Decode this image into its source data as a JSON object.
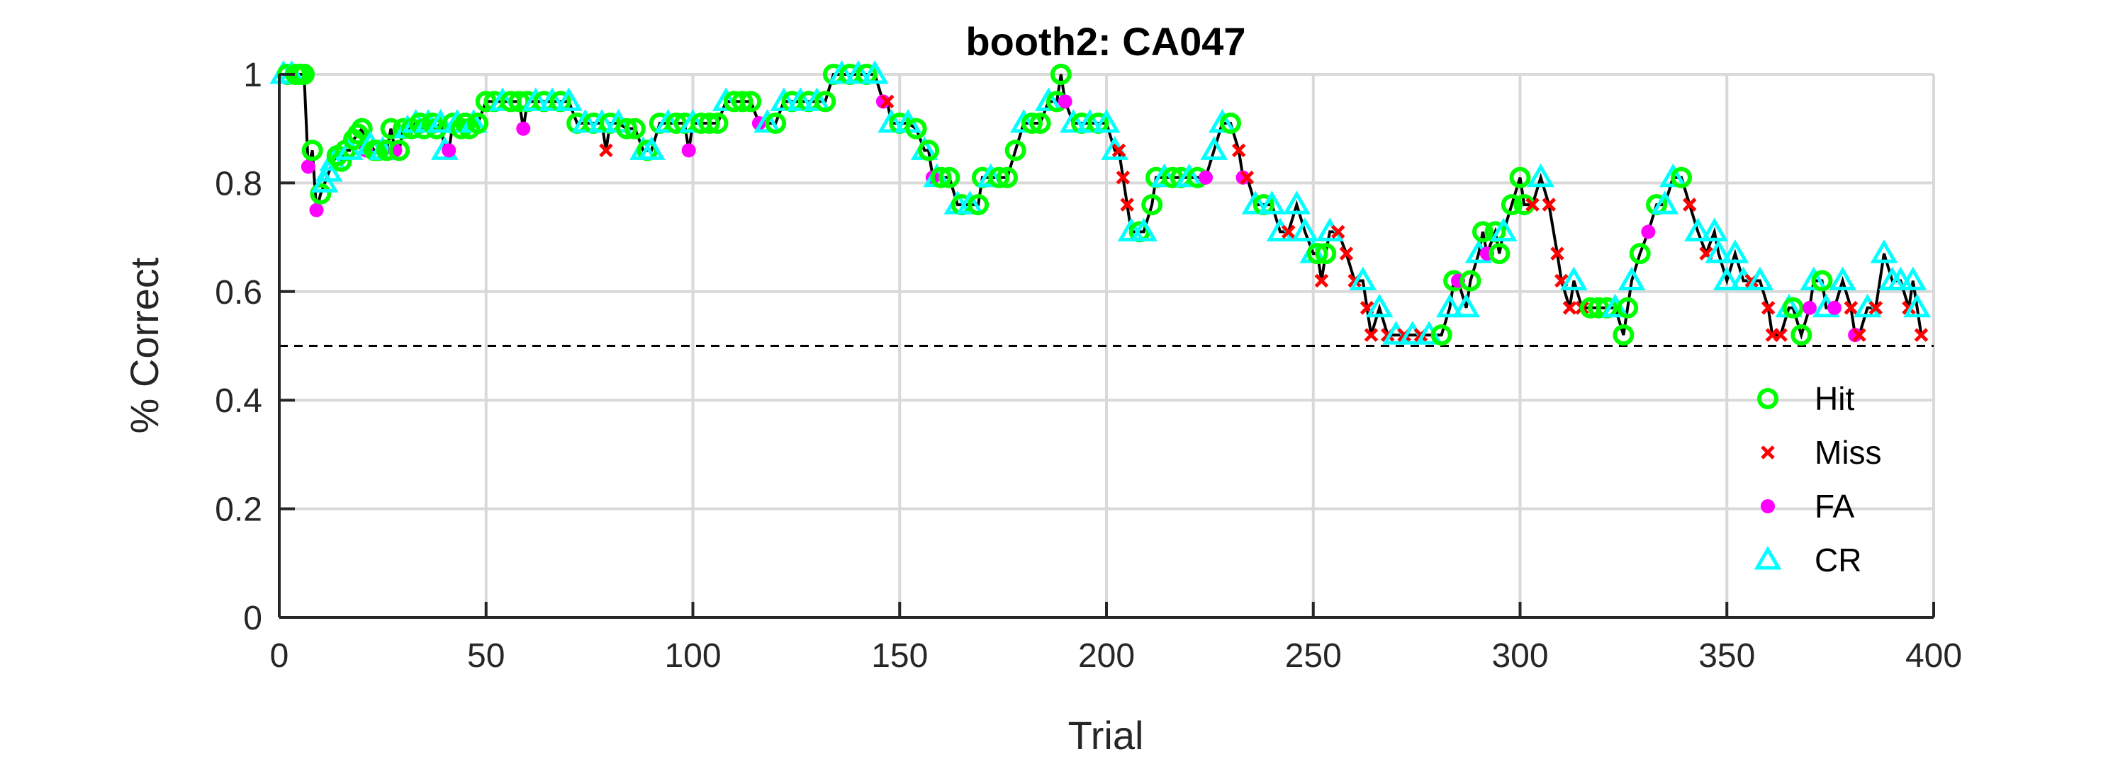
{
  "chart_data": {
    "type": "line",
    "title": "booth2: CA047",
    "xlabel": "Trial",
    "ylabel": "% Correct",
    "xlim": [
      0,
      400
    ],
    "ylim": [
      0,
      1
    ],
    "xticks": [
      0,
      50,
      100,
      150,
      200,
      250,
      300,
      350,
      400
    ],
    "yticks": [
      0,
      0.2,
      0.4,
      0.6,
      0.8,
      1
    ],
    "ytick_labels": [
      "0",
      "0.2",
      "0.4",
      "0.6",
      "0.8",
      "1"
    ],
    "grid": true,
    "reference_line": {
      "y": 0.5,
      "style": "dashed"
    },
    "legend_position": "lower-right",
    "colors": {
      "line": "#000000",
      "hit": "#00ff00",
      "miss": "#ff0000",
      "fa": "#ff00ff",
      "cr": "#00ffff",
      "grid": "#d9d9d9",
      "axis": "#262626"
    },
    "legend": [
      {
        "key": "hit",
        "label": "Hit",
        "marker": "circle"
      },
      {
        "key": "miss",
        "label": "Miss",
        "marker": "x"
      },
      {
        "key": "fa",
        "label": "FA",
        "marker": "dot"
      },
      {
        "key": "cr",
        "label": "CR",
        "marker": "triangle"
      }
    ],
    "points": [
      [
        1,
        1.0,
        "cr"
      ],
      [
        2,
        1.0,
        "hit"
      ],
      [
        3,
        1.0,
        "cr"
      ],
      [
        4,
        1.0,
        "hit"
      ],
      [
        5,
        1.0,
        "hit"
      ],
      [
        6,
        1.0,
        "hit"
      ],
      [
        7,
        0.83,
        "fa"
      ],
      [
        8,
        0.86,
        "hit"
      ],
      [
        9,
        0.75,
        "fa"
      ],
      [
        10,
        0.78,
        "hit"
      ],
      [
        11,
        0.8,
        "cr"
      ],
      [
        12,
        0.82,
        "cr"
      ],
      [
        13,
        0.84,
        "cr"
      ],
      [
        14,
        0.85,
        "hit"
      ],
      [
        15,
        0.84,
        "hit"
      ],
      [
        16,
        0.86,
        "hit"
      ],
      [
        17,
        0.86,
        "cr"
      ],
      [
        18,
        0.88,
        "hit"
      ],
      [
        19,
        0.89,
        "hit"
      ],
      [
        20,
        0.9,
        "hit"
      ],
      [
        21,
        0.86,
        "fa"
      ],
      [
        22,
        0.87,
        "cr"
      ],
      [
        23,
        0.86,
        "hit"
      ],
      [
        24,
        0.86,
        "hit"
      ],
      [
        25,
        0.86,
        "cr"
      ],
      [
        26,
        0.86,
        "hit"
      ],
      [
        27,
        0.9,
        "hit"
      ],
      [
        28,
        0.86,
        "fa"
      ],
      [
        29,
        0.86,
        "hit"
      ],
      [
        30,
        0.9,
        "hit"
      ],
      [
        31,
        0.9,
        "cr"
      ],
      [
        32,
        0.9,
        "hit"
      ],
      [
        33,
        0.91,
        "cr"
      ],
      [
        34,
        0.91,
        "hit"
      ],
      [
        35,
        0.9,
        "hit"
      ],
      [
        36,
        0.91,
        "cr"
      ],
      [
        37,
        0.91,
        "hit"
      ],
      [
        38,
        0.9,
        "hit"
      ],
      [
        39,
        0.91,
        "cr"
      ],
      [
        40,
        0.86,
        "cr"
      ],
      [
        41,
        0.86,
        "fa"
      ],
      [
        42,
        0.91,
        "hit"
      ],
      [
        43,
        0.91,
        "cr"
      ],
      [
        44,
        0.9,
        "hit"
      ],
      [
        45,
        0.91,
        "hit"
      ],
      [
        46,
        0.9,
        "hit"
      ],
      [
        47,
        0.91,
        "cr"
      ],
      [
        48,
        0.91,
        "hit"
      ],
      [
        50,
        0.95,
        "hit"
      ],
      [
        52,
        0.95,
        "hit"
      ],
      [
        54,
        0.95,
        "cr"
      ],
      [
        56,
        0.95,
        "hit"
      ],
      [
        58,
        0.95,
        "hit"
      ],
      [
        59,
        0.9,
        "fa"
      ],
      [
        60,
        0.95,
        "hit"
      ],
      [
        62,
        0.95,
        "cr"
      ],
      [
        64,
        0.95,
        "hit"
      ],
      [
        66,
        0.95,
        "cr"
      ],
      [
        68,
        0.95,
        "hit"
      ],
      [
        70,
        0.95,
        "cr"
      ],
      [
        72,
        0.91,
        "hit"
      ],
      [
        74,
        0.91,
        "cr"
      ],
      [
        76,
        0.91,
        "hit"
      ],
      [
        78,
        0.91,
        "cr"
      ],
      [
        79,
        0.86,
        "miss"
      ],
      [
        80,
        0.91,
        "hit"
      ],
      [
        82,
        0.91,
        "cr"
      ],
      [
        84,
        0.9,
        "hit"
      ],
      [
        86,
        0.9,
        "hit"
      ],
      [
        88,
        0.86,
        "cr"
      ],
      [
        89,
        0.86,
        "hit"
      ],
      [
        90,
        0.86,
        "cr"
      ],
      [
        92,
        0.91,
        "hit"
      ],
      [
        94,
        0.91,
        "cr"
      ],
      [
        96,
        0.91,
        "hit"
      ],
      [
        98,
        0.91,
        "hit"
      ],
      [
        99,
        0.86,
        "fa"
      ],
      [
        100,
        0.91,
        "cr"
      ],
      [
        102,
        0.91,
        "hit"
      ],
      [
        104,
        0.91,
        "hit"
      ],
      [
        106,
        0.91,
        "hit"
      ],
      [
        108,
        0.95,
        "cr"
      ],
      [
        110,
        0.95,
        "hit"
      ],
      [
        112,
        0.95,
        "hit"
      ],
      [
        114,
        0.95,
        "hit"
      ],
      [
        116,
        0.91,
        "fa"
      ],
      [
        118,
        0.91,
        "cr"
      ],
      [
        120,
        0.91,
        "hit"
      ],
      [
        122,
        0.95,
        "cr"
      ],
      [
        124,
        0.95,
        "hit"
      ],
      [
        126,
        0.95,
        "cr"
      ],
      [
        128,
        0.95,
        "hit"
      ],
      [
        130,
        0.95,
        "cr"
      ],
      [
        132,
        0.95,
        "hit"
      ],
      [
        134,
        1.0,
        "hit"
      ],
      [
        136,
        1.0,
        "cr"
      ],
      [
        138,
        1.0,
        "hit"
      ],
      [
        140,
        1.0,
        "cr"
      ],
      [
        142,
        1.0,
        "hit"
      ],
      [
        144,
        1.0,
        "cr"
      ],
      [
        146,
        0.95,
        "fa"
      ],
      [
        147,
        0.95,
        "miss"
      ],
      [
        148,
        0.91,
        "cr"
      ],
      [
        150,
        0.91,
        "hit"
      ],
      [
        152,
        0.91,
        "cr"
      ],
      [
        154,
        0.9,
        "hit"
      ],
      [
        156,
        0.86,
        "cr"
      ],
      [
        157,
        0.86,
        "hit"
      ],
      [
        158,
        0.81,
        "fa"
      ],
      [
        159,
        0.81,
        "cr"
      ],
      [
        160,
        0.81,
        "hit"
      ],
      [
        162,
        0.81,
        "hit"
      ],
      [
        164,
        0.76,
        "cr"
      ],
      [
        165,
        0.76,
        "hit"
      ],
      [
        167,
        0.76,
        "cr"
      ],
      [
        169,
        0.76,
        "hit"
      ],
      [
        170,
        0.81,
        "hit"
      ],
      [
        172,
        0.81,
        "cr"
      ],
      [
        174,
        0.81,
        "hit"
      ],
      [
        176,
        0.81,
        "hit"
      ],
      [
        178,
        0.86,
        "hit"
      ],
      [
        180,
        0.91,
        "cr"
      ],
      [
        182,
        0.91,
        "hit"
      ],
      [
        184,
        0.91,
        "hit"
      ],
      [
        186,
        0.95,
        "cr"
      ],
      [
        188,
        0.95,
        "hit"
      ],
      [
        189,
        1.0,
        "hit"
      ],
      [
        190,
        0.95,
        "fa"
      ],
      [
        192,
        0.91,
        "cr"
      ],
      [
        194,
        0.91,
        "hit"
      ],
      [
        196,
        0.91,
        "cr"
      ],
      [
        198,
        0.91,
        "hit"
      ],
      [
        200,
        0.91,
        "cr"
      ],
      [
        202,
        0.86,
        "cr"
      ],
      [
        203,
        0.86,
        "miss"
      ],
      [
        204,
        0.81,
        "miss"
      ],
      [
        205,
        0.76,
        "miss"
      ],
      [
        206,
        0.71,
        "cr"
      ],
      [
        208,
        0.71,
        "hit"
      ],
      [
        209,
        0.71,
        "cr"
      ],
      [
        211,
        0.76,
        "hit"
      ],
      [
        212,
        0.81,
        "hit"
      ],
      [
        214,
        0.81,
        "cr"
      ],
      [
        216,
        0.81,
        "hit"
      ],
      [
        218,
        0.81,
        "hit"
      ],
      [
        220,
        0.81,
        "cr"
      ],
      [
        222,
        0.81,
        "hit"
      ],
      [
        224,
        0.81,
        "fa"
      ],
      [
        226,
        0.86,
        "cr"
      ],
      [
        228,
        0.91,
        "cr"
      ],
      [
        230,
        0.91,
        "hit"
      ],
      [
        232,
        0.86,
        "miss"
      ],
      [
        233,
        0.81,
        "fa"
      ],
      [
        234,
        0.81,
        "miss"
      ],
      [
        236,
        0.76,
        "cr"
      ],
      [
        238,
        0.76,
        "hit"
      ],
      [
        240,
        0.76,
        "cr"
      ],
      [
        242,
        0.71,
        "cr"
      ],
      [
        244,
        0.71,
        "miss"
      ],
      [
        246,
        0.76,
        "cr"
      ],
      [
        248,
        0.71,
        "cr"
      ],
      [
        250,
        0.67,
        "cr"
      ],
      [
        251,
        0.67,
        "hit"
      ],
      [
        252,
        0.62,
        "miss"
      ],
      [
        253,
        0.67,
        "hit"
      ],
      [
        254,
        0.71,
        "cr"
      ],
      [
        256,
        0.71,
        "miss"
      ],
      [
        258,
        0.67,
        "miss"
      ],
      [
        260,
        0.62,
        "miss"
      ],
      [
        262,
        0.62,
        "cr"
      ],
      [
        263,
        0.57,
        "miss"
      ],
      [
        264,
        0.52,
        "miss"
      ],
      [
        266,
        0.57,
        "cr"
      ],
      [
        268,
        0.52,
        "miss"
      ],
      [
        270,
        0.52,
        "cr"
      ],
      [
        272,
        0.52,
        "miss"
      ],
      [
        274,
        0.52,
        "cr"
      ],
      [
        276,
        0.52,
        "miss"
      ],
      [
        278,
        0.52,
        "cr"
      ],
      [
        281,
        0.52,
        "hit"
      ],
      [
        283,
        0.57,
        "cr"
      ],
      [
        284,
        0.62,
        "hit"
      ],
      [
        285,
        0.62,
        "fa"
      ],
      [
        287,
        0.57,
        "cr"
      ],
      [
        288,
        0.62,
        "hit"
      ],
      [
        290,
        0.67,
        "cr"
      ],
      [
        291,
        0.71,
        "hit"
      ],
      [
        292,
        0.67,
        "fa"
      ],
      [
        294,
        0.71,
        "hit"
      ],
      [
        295,
        0.67,
        "hit"
      ],
      [
        296,
        0.71,
        "cr"
      ],
      [
        298,
        0.76,
        "hit"
      ],
      [
        300,
        0.81,
        "hit"
      ],
      [
        301,
        0.76,
        "hit"
      ],
      [
        303,
        0.76,
        "miss"
      ],
      [
        305,
        0.81,
        "cr"
      ],
      [
        307,
        0.76,
        "miss"
      ],
      [
        309,
        0.67,
        "miss"
      ],
      [
        310,
        0.62,
        "miss"
      ],
      [
        312,
        0.57,
        "miss"
      ],
      [
        313,
        0.62,
        "cr"
      ],
      [
        315,
        0.57,
        "miss"
      ],
      [
        317,
        0.57,
        "hit"
      ],
      [
        319,
        0.57,
        "hit"
      ],
      [
        321,
        0.57,
        "hit"
      ],
      [
        323,
        0.57,
        "cr"
      ],
      [
        325,
        0.52,
        "hit"
      ],
      [
        326,
        0.57,
        "hit"
      ],
      [
        327,
        0.62,
        "cr"
      ],
      [
        329,
        0.67,
        "hit"
      ],
      [
        331,
        0.71,
        "fa"
      ],
      [
        333,
        0.76,
        "hit"
      ],
      [
        335,
        0.76,
        "cr"
      ],
      [
        337,
        0.81,
        "cr"
      ],
      [
        339,
        0.81,
        "hit"
      ],
      [
        341,
        0.76,
        "miss"
      ],
      [
        343,
        0.71,
        "cr"
      ],
      [
        345,
        0.67,
        "miss"
      ],
      [
        347,
        0.71,
        "cr"
      ],
      [
        348,
        0.67,
        "cr"
      ],
      [
        350,
        0.62,
        "cr"
      ],
      [
        352,
        0.67,
        "cr"
      ],
      [
        354,
        0.62,
        "cr"
      ],
      [
        356,
        0.62,
        "miss"
      ],
      [
        358,
        0.62,
        "cr"
      ],
      [
        360,
        0.57,
        "miss"
      ],
      [
        361,
        0.52,
        "miss"
      ],
      [
        363,
        0.52,
        "miss"
      ],
      [
        365,
        0.57,
        "cr"
      ],
      [
        366,
        0.57,
        "hit"
      ],
      [
        368,
        0.52,
        "hit"
      ],
      [
        370,
        0.57,
        "fa"
      ],
      [
        371,
        0.62,
        "cr"
      ],
      [
        373,
        0.62,
        "hit"
      ],
      [
        374,
        0.57,
        "cr"
      ],
      [
        376,
        0.57,
        "fa"
      ],
      [
        378,
        0.62,
        "cr"
      ],
      [
        380,
        0.57,
        "miss"
      ],
      [
        381,
        0.52,
        "fa"
      ],
      [
        382,
        0.52,
        "miss"
      ],
      [
        384,
        0.57,
        "cr"
      ],
      [
        386,
        0.57,
        "miss"
      ],
      [
        388,
        0.67,
        "cr"
      ],
      [
        390,
        0.62,
        "cr"
      ],
      [
        392,
        0.62,
        "cr"
      ],
      [
        394,
        0.57,
        "miss"
      ],
      [
        395,
        0.62,
        "cr"
      ],
      [
        396,
        0.57,
        "cr"
      ],
      [
        397,
        0.52,
        "miss"
      ]
    ]
  }
}
